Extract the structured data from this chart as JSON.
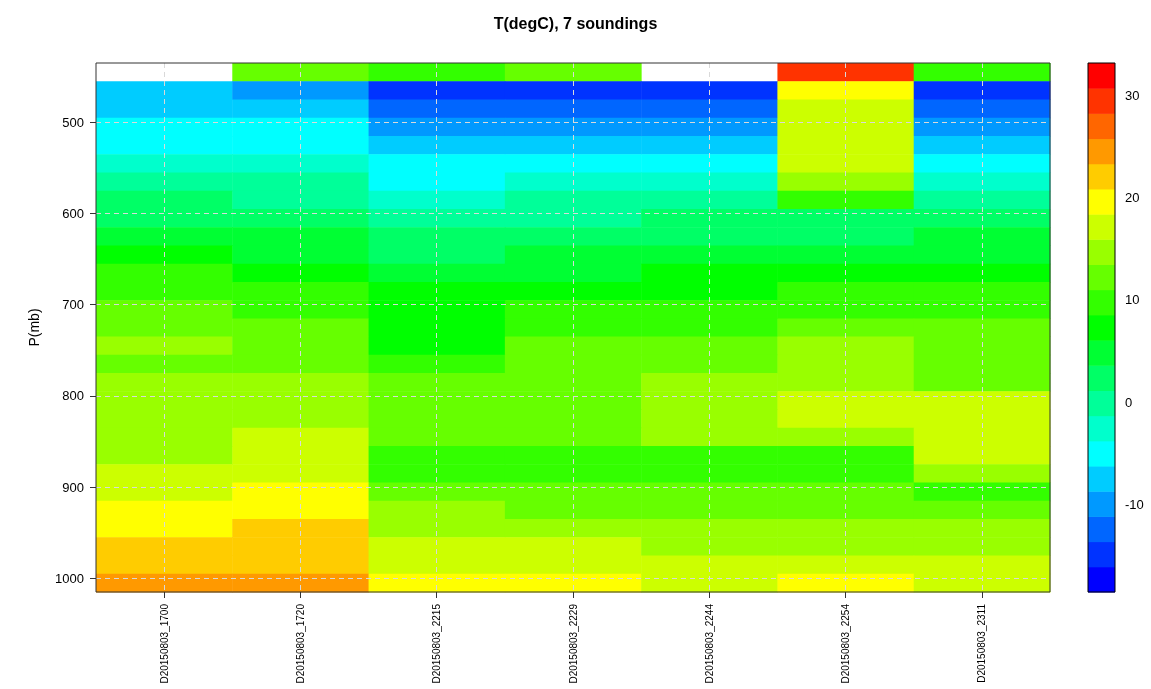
{
  "chart_data": {
    "type": "heatmap",
    "title": "T(degC), 7 soundings",
    "ylabel": "P(mb)",
    "categories": [
      "D20150803_1700",
      "D20150803_1720",
      "D20150803_2215",
      "D20150803_2229",
      "D20150803_2244",
      "D20150803_2254",
      "D20150803_2311"
    ],
    "cells": [
      [
        null,
        12,
        10,
        12,
        null,
        30,
        10
      ],
      [
        -8,
        -10,
        -15,
        -15,
        -15,
        20,
        -15
      ],
      [
        -8,
        -8,
        -12,
        -12,
        -12,
        17,
        -12
      ],
      [
        -5,
        -5,
        -10,
        -10,
        -10,
        17,
        -10
      ],
      [
        -5,
        -5,
        -8,
        -8,
        -8,
        17,
        -8
      ],
      [
        -3,
        -3,
        -5,
        -5,
        -5,
        17,
        -5
      ],
      [
        0,
        0,
        -5,
        -3,
        -3,
        15,
        -3
      ],
      [
        2,
        0,
        -3,
        0,
        0,
        10,
        0
      ],
      [
        2,
        2,
        0,
        0,
        2,
        2,
        2
      ],
      [
        5,
        5,
        2,
        2,
        2,
        2,
        5
      ],
      [
        7,
        5,
        2,
        5,
        5,
        5,
        5
      ],
      [
        10,
        7,
        5,
        5,
        7,
        7,
        7
      ],
      [
        10,
        10,
        7,
        7,
        7,
        10,
        10
      ],
      [
        12,
        10,
        7,
        10,
        10,
        10,
        10
      ],
      [
        12,
        12,
        7,
        10,
        10,
        12,
        12
      ],
      [
        15,
        12,
        7,
        12,
        12,
        15,
        12
      ],
      [
        12,
        12,
        10,
        12,
        12,
        15,
        12
      ],
      [
        15,
        15,
        12,
        12,
        15,
        15,
        12
      ],
      [
        15,
        15,
        12,
        12,
        15,
        17,
        17
      ],
      [
        15,
        15,
        12,
        12,
        15,
        17,
        17
      ],
      [
        15,
        17,
        12,
        12,
        15,
        15,
        17
      ],
      [
        15,
        17,
        10,
        10,
        10,
        10,
        17
      ],
      [
        17,
        17,
        10,
        10,
        10,
        10,
        15
      ],
      [
        17,
        20,
        12,
        12,
        12,
        12,
        10
      ],
      [
        20,
        20,
        15,
        12,
        12,
        12,
        12
      ],
      [
        20,
        22,
        15,
        15,
        15,
        15,
        15
      ],
      [
        22,
        22,
        17,
        17,
        15,
        15,
        15
      ],
      [
        22,
        22,
        17,
        17,
        17,
        17,
        17
      ],
      [
        25,
        25,
        20,
        20,
        17,
        20,
        17
      ]
    ],
    "ylim": [
      1015,
      435
    ],
    "yticks": [
      500,
      600,
      700,
      800,
      900,
      1000
    ],
    "clim": [
      -18.6,
      33.2
    ],
    "cticks": [
      -10,
      0,
      10,
      20,
      30
    ],
    "colors": [
      "#0000ff",
      "#0033ff",
      "#0066ff",
      "#0099ff",
      "#00ccff",
      "#00ffff",
      "#00ffcc",
      "#00ff99",
      "#00ff66",
      "#00ff33",
      "#00ff00",
      "#33ff00",
      "#66ff00",
      "#99ff00",
      "#ccff00",
      "#ffff00",
      "#ffcc00",
      "#ff9900",
      "#ff6600",
      "#ff3300",
      "#ff0000"
    ],
    "grid": true
  }
}
